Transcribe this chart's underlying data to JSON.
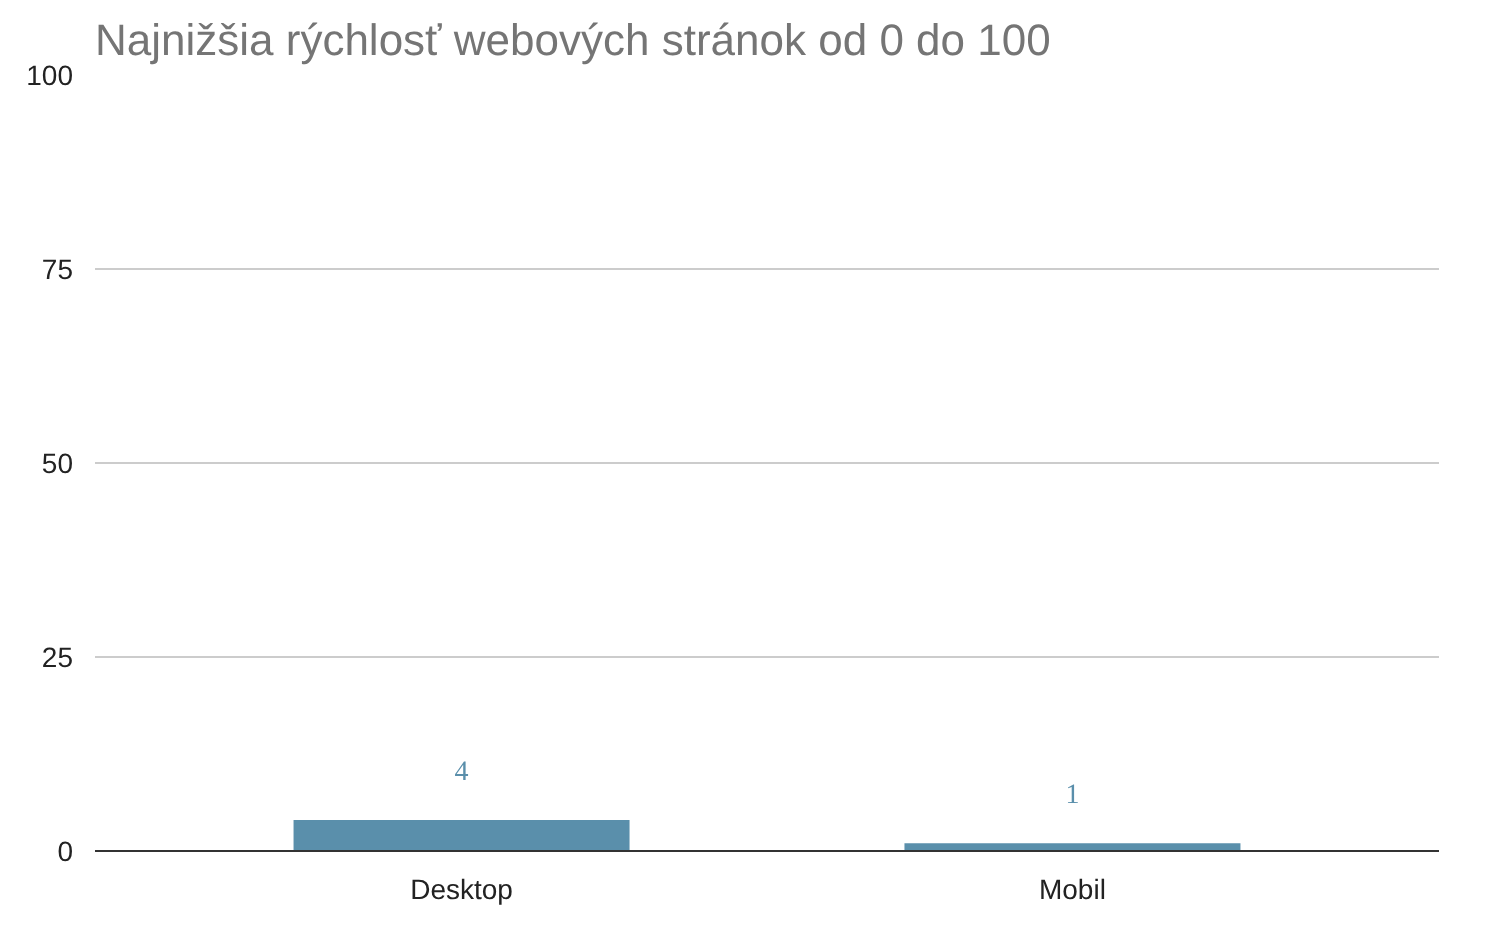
{
  "chart_data": {
    "type": "bar",
    "title": "Najnižšia rýchlosť webových stránok od 0 do 100",
    "categories": [
      "Desktop",
      "Mobil"
    ],
    "values": [
      4,
      1
    ],
    "color": "#5a8fab",
    "ylim": [
      0,
      100
    ],
    "yticks": [
      0,
      25,
      50,
      75,
      100
    ],
    "grid": "y",
    "data_labels": true
  }
}
